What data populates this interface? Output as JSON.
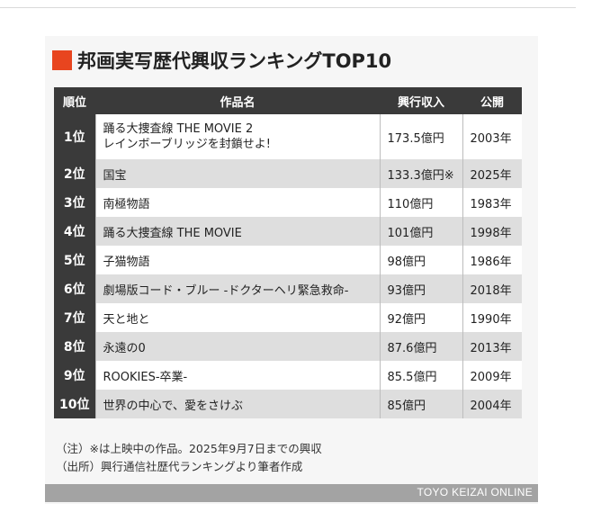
{
  "title": "邦画実写歴代興収ランキングTOP10",
  "colors": {
    "accent": "#e8451f",
    "header_bg": "#3a3a3a",
    "row_alt": "#dedede",
    "footer_bar": "#a3a3a3"
  },
  "table": {
    "headers": {
      "rank": "順位",
      "title": "作品名",
      "revenue": "興行収入",
      "year": "公開"
    },
    "rows": [
      {
        "rank": "1位",
        "title_line1": "踊る大捜査線 THE MOVIE 2",
        "title_line2": "レインボーブリッジを封鎖せよ!",
        "revenue": "173.5億円",
        "year": "2003年"
      },
      {
        "rank": "2位",
        "title_line1": "国宝",
        "revenue": "133.3億円※",
        "year": "2025年"
      },
      {
        "rank": "3位",
        "title_line1": "南極物語",
        "revenue": "110億円",
        "year": "1983年"
      },
      {
        "rank": "4位",
        "title_line1": "踊る大捜査線 THE MOVIE",
        "revenue": "101億円",
        "year": "1998年"
      },
      {
        "rank": "5位",
        "title_line1": "子猫物語",
        "revenue": "98億円",
        "year": "1986年"
      },
      {
        "rank": "6位",
        "title_line1": "劇場版コード・ブルー -ドクターヘリ緊急救命-",
        "revenue": "93億円",
        "year": "2018年"
      },
      {
        "rank": "7位",
        "title_line1": "天と地と",
        "revenue": "92億円",
        "year": "1990年"
      },
      {
        "rank": "8位",
        "title_line1": "永遠の0",
        "revenue": "87.6億円",
        "year": "2013年"
      },
      {
        "rank": "9位",
        "title_line1": "ROOKIES-卒業-",
        "revenue": "85.5億円",
        "year": "2009年"
      },
      {
        "rank": "10位",
        "title_line1": "世界の中心で、愛をさけぶ",
        "revenue": "85億円",
        "year": "2004年"
      }
    ]
  },
  "notes": {
    "note": "（注）※は上映中の作品。2025年9月7日までの興収",
    "source": "（出所）興行通信社歴代ランキングより筆者作成"
  },
  "footer": {
    "brand": "TOYO KEIZAI ONLINE"
  }
}
